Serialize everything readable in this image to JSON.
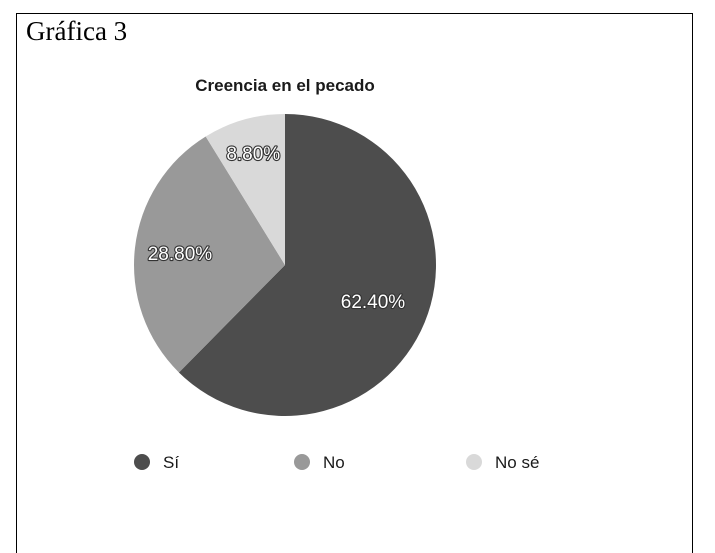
{
  "figure_label": "Gráfica 3",
  "chart_data": {
    "type": "pie",
    "title": "Creencia en el pecado",
    "legend_position": "bottom",
    "slices": [
      {
        "name": "Sí",
        "value": 62.4,
        "label": "62.40%",
        "color": "#4d4d4d"
      },
      {
        "name": "No",
        "value": 28.8,
        "label": "28.80%",
        "color": "#999999"
      },
      {
        "name": "No sé",
        "value": 8.8,
        "label": "8.80%",
        "color": "#d9d9d9"
      }
    ]
  }
}
